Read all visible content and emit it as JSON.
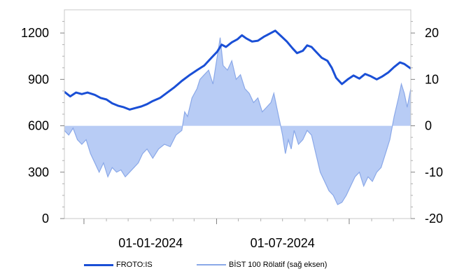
{
  "chart_data": {
    "type": "line",
    "x_axis": {
      "type": "date",
      "range": [
        "2023-09-04",
        "2024-12-25"
      ],
      "tick_labels": [
        "01-01-2024",
        "01-07-2024"
      ],
      "tick_label_dates": [
        "2024-01-01",
        "2024-07-01"
      ]
    },
    "y_left": {
      "range": [
        0,
        1350
      ],
      "ticks": [
        0,
        300,
        600,
        900,
        1200
      ],
      "tick_labels": [
        "0",
        "300",
        "600",
        "900",
        "1200"
      ]
    },
    "y_right": {
      "range": [
        -20,
        25
      ],
      "ticks": [
        -20,
        -10,
        0,
        10,
        20
      ],
      "tick_labels": [
        "-20",
        "-10",
        "0",
        "10",
        "20"
      ]
    },
    "grid": false,
    "legend_position": "bottom",
    "series": [
      {
        "name": "FROTO:IS",
        "axis": "left",
        "style": "line",
        "color": "#1a4fd6",
        "points": [
          [
            "2023-09-04",
            820
          ],
          [
            "2023-09-12",
            790
          ],
          [
            "2023-09-20",
            815
          ],
          [
            "2023-09-28",
            805
          ],
          [
            "2023-10-06",
            815
          ],
          [
            "2023-10-16",
            800
          ],
          [
            "2023-10-24",
            780
          ],
          [
            "2023-11-01",
            770
          ],
          [
            "2023-11-09",
            745
          ],
          [
            "2023-11-17",
            730
          ],
          [
            "2023-11-25",
            720
          ],
          [
            "2023-12-03",
            705
          ],
          [
            "2023-12-11",
            715
          ],
          [
            "2023-12-19",
            725
          ],
          [
            "2023-12-27",
            740
          ],
          [
            "2024-01-04",
            760
          ],
          [
            "2024-01-14",
            780
          ],
          [
            "2024-01-24",
            815
          ],
          [
            "2024-02-03",
            850
          ],
          [
            "2024-02-13",
            890
          ],
          [
            "2024-02-23",
            925
          ],
          [
            "2024-03-05",
            960
          ],
          [
            "2024-03-15",
            990
          ],
          [
            "2024-03-25",
            1040
          ],
          [
            "2024-04-02",
            1080
          ],
          [
            "2024-04-08",
            1125
          ],
          [
            "2024-04-14",
            1110
          ],
          [
            "2024-04-22",
            1140
          ],
          [
            "2024-04-30",
            1160
          ],
          [
            "2024-05-06",
            1185
          ],
          [
            "2024-05-12",
            1165
          ],
          [
            "2024-05-20",
            1145
          ],
          [
            "2024-05-28",
            1150
          ],
          [
            "2024-06-05",
            1175
          ],
          [
            "2024-06-13",
            1195
          ],
          [
            "2024-06-21",
            1215
          ],
          [
            "2024-06-29",
            1180
          ],
          [
            "2024-07-07",
            1145
          ],
          [
            "2024-07-15",
            1100
          ],
          [
            "2024-07-21",
            1070
          ],
          [
            "2024-07-29",
            1085
          ],
          [
            "2024-08-04",
            1120
          ],
          [
            "2024-08-10",
            1110
          ],
          [
            "2024-08-16",
            1080
          ],
          [
            "2024-08-24",
            1040
          ],
          [
            "2024-09-01",
            1020
          ],
          [
            "2024-09-07",
            975
          ],
          [
            "2024-09-13",
            910
          ],
          [
            "2024-09-21",
            870
          ],
          [
            "2024-09-29",
            900
          ],
          [
            "2024-10-07",
            925
          ],
          [
            "2024-10-15",
            905
          ],
          [
            "2024-10-23",
            935
          ],
          [
            "2024-10-31",
            920
          ],
          [
            "2024-11-08",
            900
          ],
          [
            "2024-11-16",
            920
          ],
          [
            "2024-11-24",
            945
          ],
          [
            "2024-12-02",
            980
          ],
          [
            "2024-12-10",
            1010
          ],
          [
            "2024-12-16",
            1000
          ],
          [
            "2024-12-25",
            970
          ]
        ]
      },
      {
        "name": "BİST 100 Rölatif (sağ eksen)",
        "axis": "right",
        "style": "area",
        "color": "#8aa8e8",
        "fill": "#b8ccf5",
        "points": [
          [
            "2023-09-04",
            -1
          ],
          [
            "2023-09-10",
            -2
          ],
          [
            "2023-09-16",
            -0.5
          ],
          [
            "2023-09-22",
            -3
          ],
          [
            "2023-09-28",
            -4
          ],
          [
            "2023-10-04",
            -3
          ],
          [
            "2023-10-10",
            -6
          ],
          [
            "2023-10-16",
            -8
          ],
          [
            "2023-10-22",
            -10
          ],
          [
            "2023-10-28",
            -8
          ],
          [
            "2023-11-03",
            -11
          ],
          [
            "2023-11-09",
            -9
          ],
          [
            "2023-11-15",
            -10
          ],
          [
            "2023-11-21",
            -9.5
          ],
          [
            "2023-11-27",
            -11
          ],
          [
            "2023-12-03",
            -10
          ],
          [
            "2023-12-09",
            -9
          ],
          [
            "2023-12-15",
            -8
          ],
          [
            "2023-12-21",
            -6
          ],
          [
            "2023-12-27",
            -5
          ],
          [
            "2024-01-04",
            -7
          ],
          [
            "2024-01-12",
            -5
          ],
          [
            "2024-01-20",
            -4
          ],
          [
            "2024-01-28",
            -4.5
          ],
          [
            "2024-02-05",
            -2
          ],
          [
            "2024-02-13",
            -1
          ],
          [
            "2024-02-17",
            3
          ],
          [
            "2024-02-21",
            2
          ],
          [
            "2024-02-27",
            6
          ],
          [
            "2024-03-05",
            8
          ],
          [
            "2024-03-09",
            10
          ],
          [
            "2024-03-15",
            11
          ],
          [
            "2024-03-21",
            12
          ],
          [
            "2024-03-27",
            9
          ],
          [
            "2024-04-02",
            15
          ],
          [
            "2024-04-06",
            19
          ],
          [
            "2024-04-10",
            13
          ],
          [
            "2024-04-16",
            12
          ],
          [
            "2024-04-22",
            14
          ],
          [
            "2024-04-28",
            10
          ],
          [
            "2024-05-04",
            11
          ],
          [
            "2024-05-10",
            8
          ],
          [
            "2024-05-16",
            7
          ],
          [
            "2024-05-22",
            5
          ],
          [
            "2024-05-28",
            6
          ],
          [
            "2024-06-03",
            3
          ],
          [
            "2024-06-09",
            4
          ],
          [
            "2024-06-15",
            5
          ],
          [
            "2024-06-19",
            7
          ],
          [
            "2024-06-23",
            4
          ],
          [
            "2024-06-27",
            1
          ],
          [
            "2024-07-01",
            -2
          ],
          [
            "2024-07-05",
            -6
          ],
          [
            "2024-07-09",
            -3
          ],
          [
            "2024-07-13",
            -5
          ],
          [
            "2024-07-17",
            -1
          ],
          [
            "2024-07-23",
            -4
          ],
          [
            "2024-07-29",
            -3
          ],
          [
            "2024-08-04",
            -1
          ],
          [
            "2024-08-10",
            -2
          ],
          [
            "2024-08-16",
            -6
          ],
          [
            "2024-08-22",
            -10
          ],
          [
            "2024-08-28",
            -12
          ],
          [
            "2024-09-03",
            -14
          ],
          [
            "2024-09-09",
            -15
          ],
          [
            "2024-09-15",
            -17
          ],
          [
            "2024-09-21",
            -16.5
          ],
          [
            "2024-09-27",
            -15
          ],
          [
            "2024-10-03",
            -13
          ],
          [
            "2024-10-09",
            -11
          ],
          [
            "2024-10-15",
            -10
          ],
          [
            "2024-10-21",
            -13
          ],
          [
            "2024-10-27",
            -11
          ],
          [
            "2024-11-02",
            -12
          ],
          [
            "2024-11-08",
            -10
          ],
          [
            "2024-11-14",
            -9
          ],
          [
            "2024-11-20",
            -6
          ],
          [
            "2024-11-26",
            -3
          ],
          [
            "2024-12-02",
            2
          ],
          [
            "2024-12-08",
            6
          ],
          [
            "2024-12-12",
            9
          ],
          [
            "2024-12-16",
            7
          ],
          [
            "2024-12-20",
            4
          ],
          [
            "2024-12-25",
            8
          ]
        ]
      }
    ]
  }
}
